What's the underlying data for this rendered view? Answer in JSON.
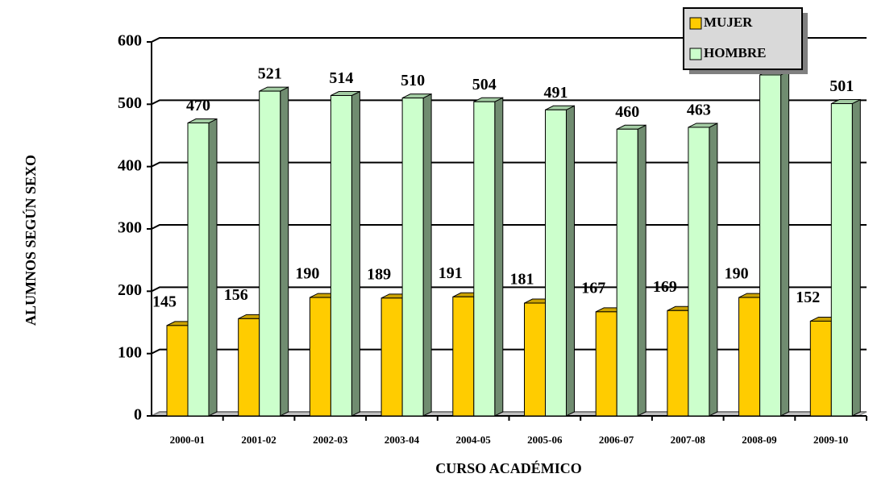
{
  "chart_data": {
    "type": "bar",
    "y_label": "ALUMNOS SEGÚN SEXO",
    "x_label": "CURSO ACADÉMICO",
    "categories": [
      "2000-01",
      "2001-02",
      "2002-03",
      "2003-04",
      "2004-05",
      "2005-06",
      "2006-07",
      "2007-08",
      "2008-09",
      "2009-10"
    ],
    "series": [
      {
        "name": "MUJER",
        "color": "#ffcc00",
        "values": [
          145,
          156,
          190,
          189,
          191,
          181,
          167,
          169,
          190,
          152
        ]
      },
      {
        "name": "HOMBRE",
        "color": "#ccffcc",
        "values": [
          470,
          521,
          514,
          510,
          504,
          491,
          460,
          463,
          547,
          501
        ]
      }
    ],
    "ylim": [
      0,
      600
    ],
    "yticks": [
      0,
      100,
      200,
      300,
      400,
      500,
      600
    ],
    "grid": true,
    "legend": "top-right"
  }
}
